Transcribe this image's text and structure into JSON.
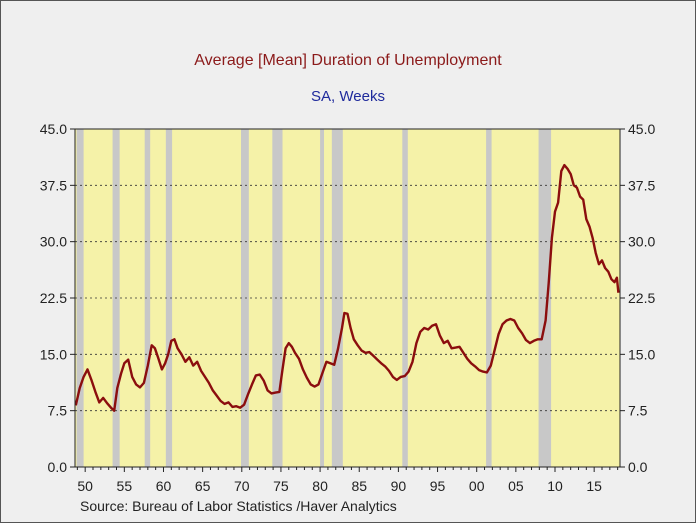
{
  "title": "Average [Mean] Duration of Unemployment",
  "subtitle": "SA, Weeks",
  "source": "Source:  Bureau of Labor Statistics /Haver Analytics",
  "colors": {
    "plot_background": "#f5f2a8",
    "recession_band": "#c8c8c8",
    "line": "#8b0e0e",
    "title": "#8b1a1a",
    "subtitle": "#1f2a9c"
  },
  "chart_data": {
    "type": "line",
    "title": "Average [Mean] Duration of Unemployment",
    "subtitle": "SA, Weeks",
    "xlabel": "",
    "ylabel": "",
    "xlim": [
      1948.7,
      2018.3
    ],
    "ylim": [
      0,
      45
    ],
    "yticks": [
      0.0,
      7.5,
      15.0,
      22.5,
      30.0,
      37.5,
      45.0
    ],
    "ytick_labels": [
      "0.0",
      "7.5",
      "15.0",
      "22.5",
      "30.0",
      "37.5",
      "45.0"
    ],
    "xticks": [
      1950,
      1955,
      1960,
      1965,
      1970,
      1975,
      1980,
      1985,
      1990,
      1995,
      2000,
      2005,
      2010,
      2015
    ],
    "xtick_labels": [
      "50",
      "55",
      "60",
      "65",
      "70",
      "75",
      "80",
      "85",
      "90",
      "95",
      "00",
      "05",
      "10",
      "15"
    ],
    "y_axis_both_sides": true,
    "grid": "horizontal dashed",
    "recessions": [
      [
        1948.9,
        1949.8
      ],
      [
        1953.5,
        1954.4
      ],
      [
        1957.6,
        1958.3
      ],
      [
        1960.3,
        1961.1
      ],
      [
        1969.9,
        1970.9
      ],
      [
        1973.9,
        1975.2
      ],
      [
        1980.0,
        1980.5
      ],
      [
        1981.5,
        1982.9
      ],
      [
        1990.5,
        1991.2
      ],
      [
        2001.2,
        2001.9
      ],
      [
        2007.9,
        2009.5
      ]
    ],
    "series": [
      {
        "x": [
          1948.8,
          1949.3,
          1949.8,
          1950.3,
          1950.8,
          1951.3,
          1951.8,
          1952.3,
          1952.8,
          1953.3,
          1953.7,
          1954.1,
          1954.6,
          1955.0,
          1955.5,
          1956.0,
          1956.5,
          1957.0,
          1957.5,
          1958.0,
          1958.5,
          1958.9,
          1959.3,
          1959.8,
          1960.2,
          1960.6,
          1961.0,
          1961.4,
          1961.8,
          1962.3,
          1962.8,
          1963.3,
          1963.8,
          1964.3,
          1964.8,
          1965.3,
          1965.8,
          1966.3,
          1966.8,
          1967.3,
          1967.8,
          1968.3,
          1968.8,
          1969.3,
          1969.8,
          1970.3,
          1970.8,
          1971.3,
          1971.8,
          1972.3,
          1972.8,
          1973.3,
          1973.8,
          1974.3,
          1974.8,
          1975.2,
          1975.6,
          1976.0,
          1976.4,
          1976.8,
          1977.3,
          1977.8,
          1978.3,
          1978.8,
          1979.3,
          1979.8,
          1980.3,
          1980.8,
          1981.3,
          1981.8,
          1982.3,
          1982.8,
          1983.1,
          1983.5,
          1983.9,
          1984.3,
          1984.8,
          1985.3,
          1985.8,
          1986.3,
          1986.8,
          1987.3,
          1987.8,
          1988.3,
          1988.8,
          1989.3,
          1989.8,
          1990.3,
          1990.8,
          1991.3,
          1991.8,
          1992.3,
          1992.8,
          1993.3,
          1993.8,
          1994.3,
          1994.8,
          1995.3,
          1995.8,
          1996.3,
          1996.8,
          1997.3,
          1997.8,
          1998.3,
          1998.8,
          1999.3,
          1999.8,
          2000.3,
          2000.8,
          2001.3,
          2001.8,
          2002.3,
          2002.8,
          2003.3,
          2003.8,
          2004.3,
          2004.8,
          2005.3,
          2005.8,
          2006.3,
          2006.8,
          2007.3,
          2007.8,
          2008.3,
          2008.8,
          2009.2,
          2009.6,
          2010.0,
          2010.4,
          2010.8,
          2011.2,
          2011.6,
          2012.0,
          2012.4,
          2012.8,
          2013.2,
          2013.6,
          2014.0,
          2014.4,
          2014.8,
          2015.2,
          2015.6,
          2016.0,
          2016.4,
          2016.8,
          2017.2,
          2017.6,
          2017.9,
          2018.1
        ],
        "y": [
          8.2,
          10.5,
          12.0,
          13.0,
          11.6,
          10.0,
          8.6,
          9.2,
          8.5,
          7.9,
          7.5,
          10.5,
          12.5,
          13.8,
          14.3,
          12.0,
          11.0,
          10.6,
          11.2,
          13.5,
          16.2,
          15.8,
          14.6,
          13.0,
          13.8,
          15.0,
          16.8,
          17.0,
          15.8,
          15.0,
          14.0,
          14.6,
          13.5,
          14.0,
          12.8,
          12.0,
          11.2,
          10.2,
          9.5,
          8.8,
          8.4,
          8.6,
          8.0,
          8.1,
          7.9,
          8.3,
          9.7,
          11.0,
          12.2,
          12.3,
          11.5,
          10.2,
          9.8,
          9.9,
          10.0,
          13.0,
          15.8,
          16.5,
          16.0,
          15.2,
          14.4,
          13.0,
          11.9,
          11.0,
          10.7,
          11.0,
          12.5,
          14.0,
          13.8,
          13.6,
          15.8,
          18.5,
          20.5,
          20.4,
          18.5,
          17.0,
          16.2,
          15.5,
          15.2,
          15.3,
          14.8,
          14.3,
          13.8,
          13.4,
          12.8,
          12.0,
          11.6,
          12.0,
          12.1,
          12.7,
          14.0,
          16.5,
          18.0,
          18.5,
          18.3,
          18.8,
          19.0,
          17.5,
          16.5,
          16.8,
          15.8,
          15.9,
          16.0,
          15.2,
          14.4,
          13.8,
          13.4,
          12.9,
          12.7,
          12.6,
          13.5,
          15.6,
          17.7,
          19.0,
          19.5,
          19.7,
          19.5,
          18.5,
          17.8,
          16.9,
          16.5,
          16.8,
          17.0,
          17.0,
          19.5,
          24.5,
          30.5,
          34.0,
          35.2,
          39.4,
          40.2,
          39.7,
          39.0,
          37.5,
          37.2,
          36.0,
          35.6,
          33.0,
          32.0,
          30.5,
          28.5,
          27.0,
          27.5,
          26.5,
          26.0,
          25.0,
          24.6,
          25.2,
          23.2
        ]
      }
    ]
  }
}
